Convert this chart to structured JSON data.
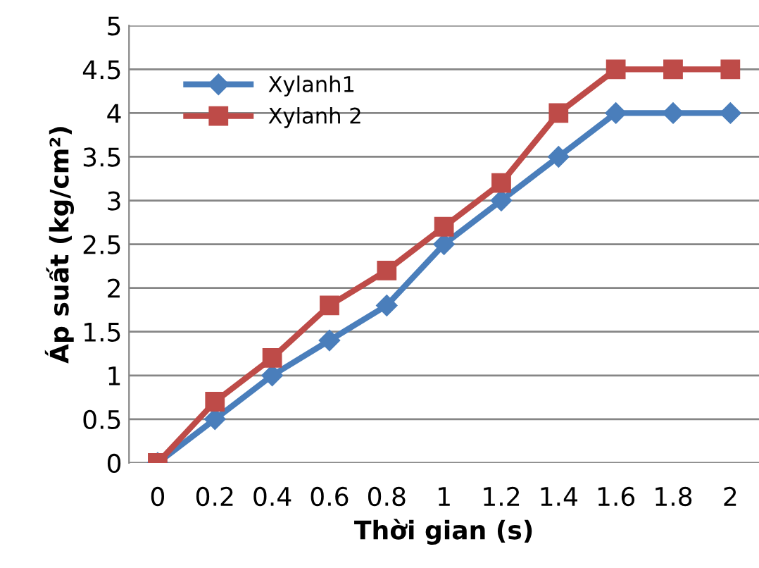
{
  "chart_data": {
    "type": "line",
    "xlabel": "Thời gian (s)",
    "ylabel": "Áp suất (kg/cm²)",
    "categories": [
      "0",
      "0.2",
      "0.4",
      "0.6",
      "0.8",
      "1",
      "1.2",
      "1.4",
      "1.6",
      "1.8",
      "2"
    ],
    "series": [
      {
        "name": "Xylanh1",
        "color": "#4a7ebb",
        "marker": "diamond",
        "values": [
          0,
          0.5,
          1,
          1.4,
          1.8,
          2.5,
          3,
          3.5,
          4,
          4,
          4
        ]
      },
      {
        "name": "Xylanh 2",
        "color": "#be4b48",
        "marker": "square",
        "values": [
          0,
          0.7,
          1.2,
          1.8,
          2.2,
          2.7,
          3.2,
          4,
          4.5,
          4.5,
          4.5
        ]
      }
    ],
    "ylim": [
      0,
      5
    ],
    "yticks": [
      0,
      0.5,
      1,
      1.5,
      2,
      2.5,
      3,
      3.5,
      4,
      4.5,
      5
    ],
    "grid": "y",
    "legend": "top left",
    "line_style": "solid"
  }
}
